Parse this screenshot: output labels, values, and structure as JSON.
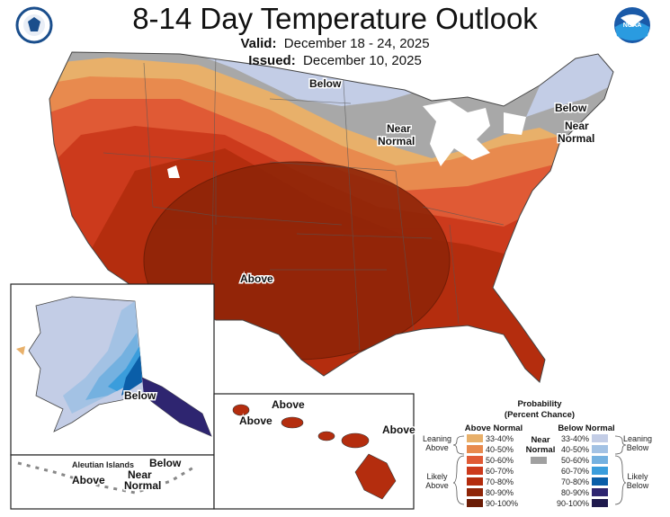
{
  "header": {
    "title": "8-14 Day Temperature Outlook",
    "valid_label": "Valid:",
    "valid_value": "December 18 - 24, 2025",
    "issued_label": "Issued:",
    "issued_value": "December 10, 2025"
  },
  "logos": {
    "left": "commerce-seal",
    "right": "NOAA"
  },
  "map_labels": {
    "below": "Below",
    "near_normal_1": "Near",
    "near_normal_2": "Normal",
    "above": "Above",
    "ne_below": "Below",
    "ne_near": "Near",
    "ne_normal": "Normal"
  },
  "alaska": {
    "below": "Below",
    "aleutian": "Aleutian Islands",
    "above": "Above",
    "near": "Near",
    "normal": "Normal",
    "below2": "Below"
  },
  "hawaii": {
    "above1": "Above",
    "above2": "Above",
    "above3": "Above"
  },
  "legend": {
    "title1": "Probability",
    "title2": "(Percent Chance)",
    "above_header": "Above Normal",
    "below_header": "Below Normal",
    "near_1": "Near",
    "near_2": "Normal",
    "near_color": "#a0a0a0",
    "leaning_above_1": "Leaning",
    "leaning_above_2": "Above",
    "likely_above_1": "Likely",
    "likely_above_2": "Above",
    "leaning_below_1": "Leaning",
    "leaning_below_2": "Below",
    "likely_below_1": "Likely",
    "likely_below_2": "Below",
    "above": [
      {
        "range": "33-40%",
        "color": "#e8b06a"
      },
      {
        "range": "40-50%",
        "color": "#e88a4e"
      },
      {
        "range": "50-60%",
        "color": "#e05a35"
      },
      {
        "range": "60-70%",
        "color": "#cc3a1c"
      },
      {
        "range": "70-80%",
        "color": "#b42d0e"
      },
      {
        "range": "80-90%",
        "color": "#8f2508"
      },
      {
        "range": "90-100%",
        "color": "#6b1c06"
      }
    ],
    "below": [
      {
        "range": "33-40%",
        "color": "#c3cde6"
      },
      {
        "range": "40-50%",
        "color": "#a3c2e4"
      },
      {
        "range": "50-60%",
        "color": "#74b1e0"
      },
      {
        "range": "60-70%",
        "color": "#3a9ddc"
      },
      {
        "range": "70-80%",
        "color": "#0a5ea8"
      },
      {
        "range": "80-90%",
        "color": "#2e2570"
      },
      {
        "range": "90-100%",
        "color": "#1f1a4d"
      }
    ]
  }
}
